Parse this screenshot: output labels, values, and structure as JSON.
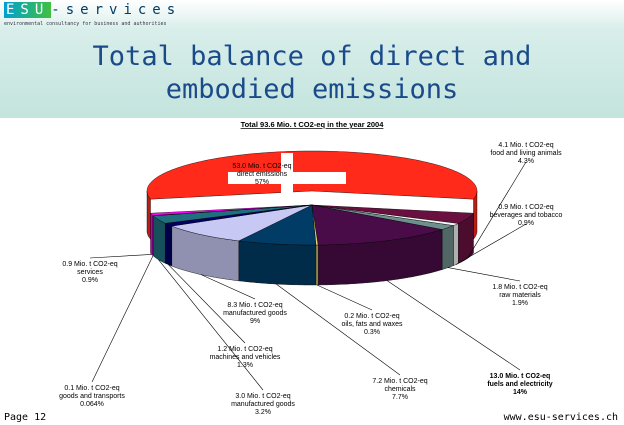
{
  "header": {
    "logo_mark": "ESU",
    "logo_text": "-services",
    "tagline": "environmental consultancy for business and authorities",
    "title": "Total balance of direct and embodied emissions"
  },
  "chart_data": {
    "type": "pie3d",
    "title": "Total 93.6 Mio. t CO2-eq in the year 2004",
    "categories": [
      "direct emissions",
      "food and living animals",
      "beverages and tobacco",
      "raw materials",
      "fuels and electricity",
      "oils, fats and waxes",
      "chemicals",
      "manufactured goods",
      "machines and vehicles",
      "manufactured goods",
      "goods and transports",
      "services"
    ],
    "values": [
      53.0,
      4.1,
      0.9,
      1.8,
      13.0,
      0.2,
      7.2,
      8.3,
      1.2,
      3.0,
      0.1,
      0.9
    ],
    "value_labels": [
      "53.0 Mio. t CO2-eq",
      "4.1 Mio. t CO2-eq",
      "0.9 Mio. t CO2-eq",
      "1.8 Mio. t CO2-eq",
      "13.0 Mio. t CO2-eq",
      "0.2 Mio. t CO2-eq",
      "7.2 Mio. t CO2-eq",
      "8.3 Mio. t CO2-eq",
      "1.2 Mio. t CO2-eq",
      "3.0 Mio. t CO2-eq",
      "0.1 Mio. t CO2-eq",
      "0.9 Mio. t CO2-eq"
    ],
    "shares": [
      "57%",
      "4.3%",
      "0.9%",
      "1.9%",
      "14%",
      "0.3%",
      "7.7%",
      "9%",
      "1.3%",
      "3.2%",
      "0.064%",
      "0.9%"
    ],
    "colors": [
      "#ff2a1a",
      "#6a1040",
      "#f4f4f4",
      "#6f8f8c",
      "#4a0c48",
      "#e0d870",
      "#003c66",
      "#c8c8f4",
      "#000066",
      "#1f6f7f",
      "#b0b0c0",
      "#ff00ff"
    ],
    "bold": [
      4
    ]
  },
  "footer": {
    "page": "Page 12",
    "url": "www.esu-services.ch"
  }
}
